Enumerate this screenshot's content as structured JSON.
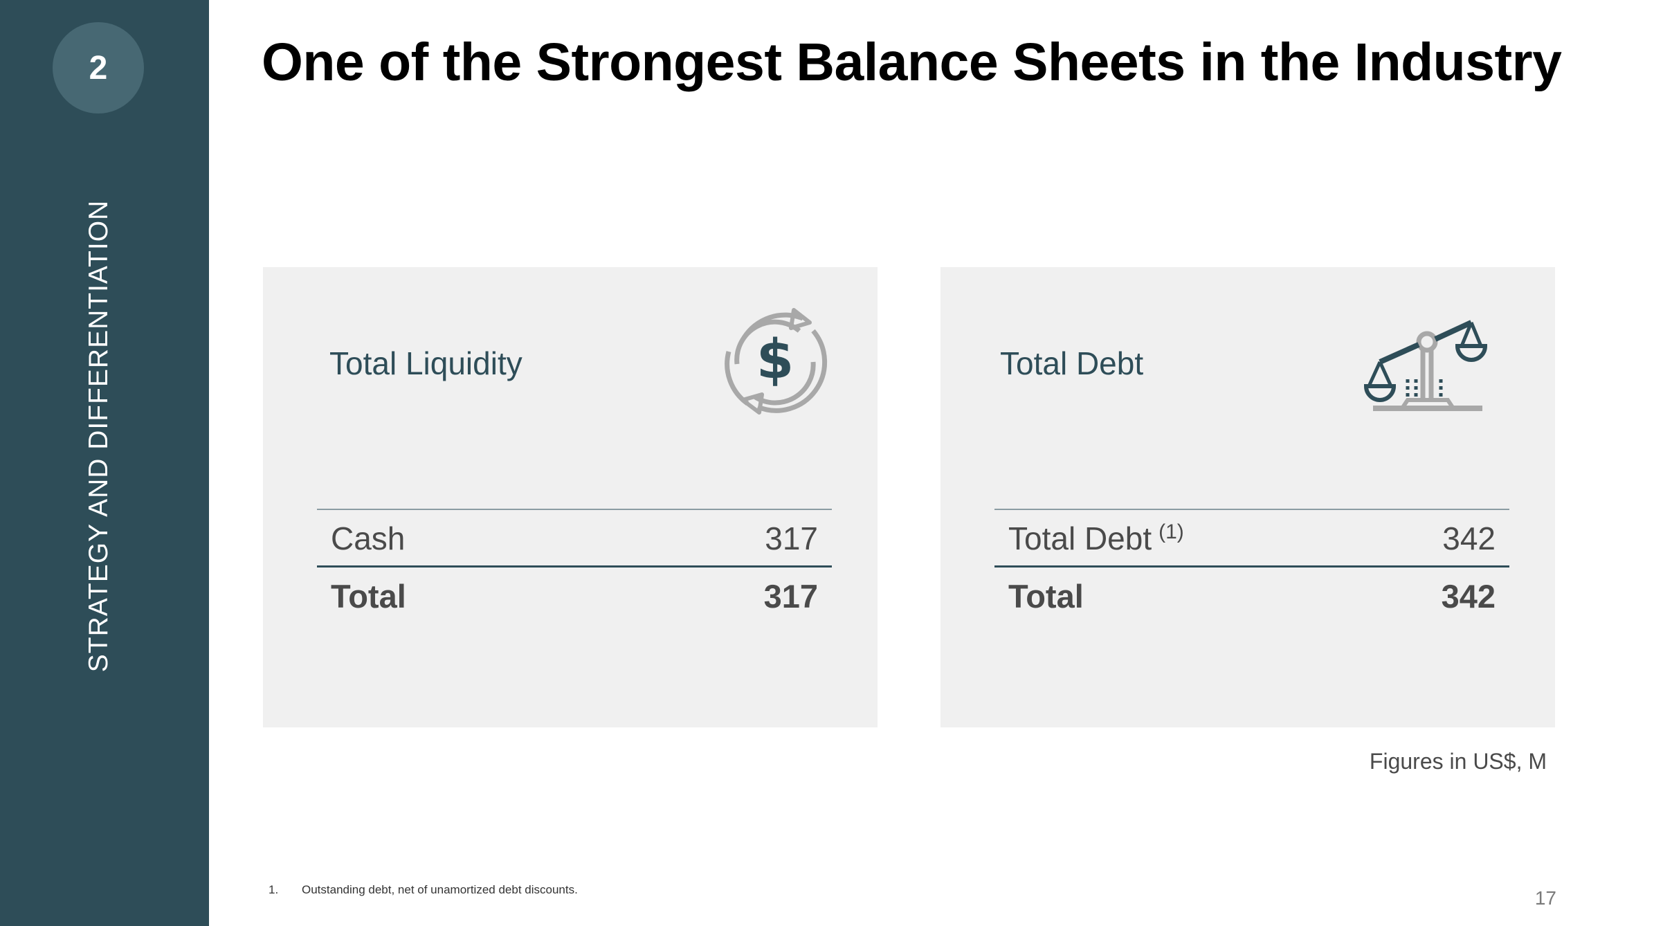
{
  "sidebar": {
    "section_number": "2",
    "section_label": "STRATEGY AND DIFFERENTIATION",
    "background_color": "#2e4d58"
  },
  "title": "One of the Strongest Balance Sheets in the Industry",
  "cards": [
    {
      "title": "Total Liquidity",
      "icon": "dollar-cycle-icon",
      "rows": [
        {
          "label": "Cash",
          "superscript": "",
          "value": "317"
        }
      ],
      "total": {
        "label": "Total",
        "value": "317"
      }
    },
    {
      "title": "Total Debt",
      "icon": "balance-scale-icon",
      "rows": [
        {
          "label": "Total Debt",
          "superscript": "(1)",
          "value": "342"
        }
      ],
      "total": {
        "label": "Total",
        "value": "342"
      }
    }
  ],
  "units_note": "Figures in US$, M",
  "footnote": {
    "number": "1.",
    "text": "Outstanding debt, net of unamortized debt discounts."
  },
  "page_number": "17",
  "colors": {
    "accent": "#2e4d58",
    "card_background": "#f0f0f0",
    "icon_gray": "#a8a8a8"
  }
}
